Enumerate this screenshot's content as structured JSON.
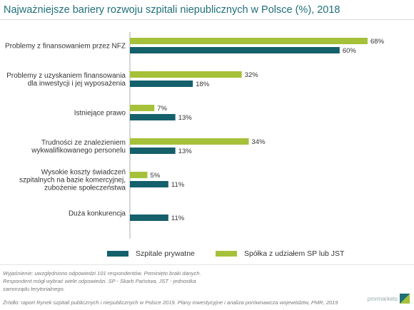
{
  "title": "Najważniejsze bariery rozwoju szpitali niepublicznych w Polsce (%), 2018",
  "colors": {
    "title": "#1f6f78",
    "private": "#14606b",
    "sp_share": "#a5c13a"
  },
  "chart_data": {
    "type": "bar",
    "orientation": "horizontal",
    "categories": [
      [
        "Problemy z finansowaniem przez NFZ"
      ],
      [
        "Problemy z uzyskaniem finansowania",
        "dla inwestycji i jej wyposażenia"
      ],
      [
        "Istniejące prawo"
      ],
      [
        "Trudności ze znalezieniem",
        "wykwalifikowanego personelu"
      ],
      [
        "Wysokie koszty świadczeń",
        "szpitalnych na bazie komercyjnej,",
        "zubożenie społeczeństwa"
      ],
      [
        "Duża konkurencja"
      ]
    ],
    "series": [
      {
        "name": "Spółka z udziałem SP lub JST",
        "color": "#a5c13a",
        "values": [
          68,
          32,
          7,
          34,
          5,
          null
        ]
      },
      {
        "name": "Szpitale prywatne",
        "color": "#14606b",
        "values": [
          60,
          18,
          13,
          13,
          11,
          11
        ]
      }
    ],
    "value_suffix": "%",
    "xlim": [
      0,
      70
    ],
    "grid": false,
    "legend_position": "bottom"
  },
  "legend": [
    {
      "label": "Szpitale prywatne",
      "color": "#14606b"
    },
    {
      "label": "Spółka z udziałem SP lub JST",
      "color": "#a5c13a"
    }
  ],
  "note": "Wyjaśnienie: uwzględniono odpowiedzi 101 respondentów. Pominięto braki danych. Respondent mógł wybrać wiele odpowiedzi. SP - Skarb Państwa, JST - jednostka samorządu terytorialnego.",
  "source": "Źródło: raport Rynek szpitali publicznych i niepublicznych w Polsce 2019. Plany inwestycyjne i analiza porównawcza województw, PMR, 2019",
  "logo_text": "pmrmarkets"
}
